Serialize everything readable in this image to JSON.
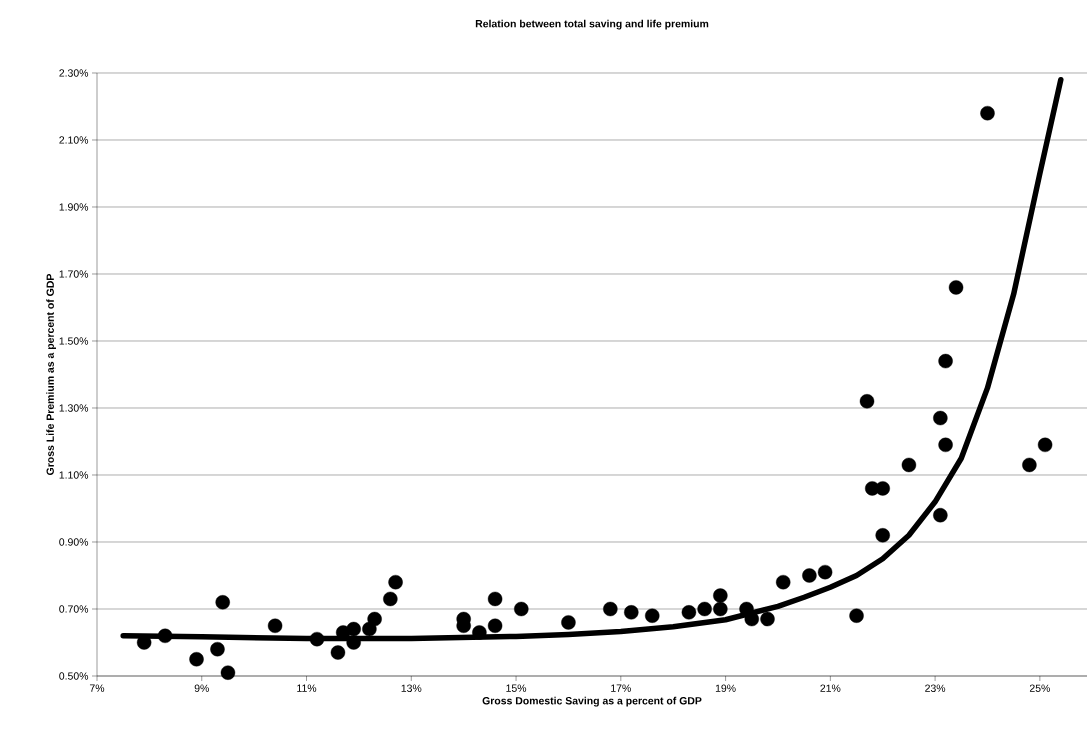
{
  "chart_data": {
    "type": "scatter",
    "title": "Relation between total saving and life premium",
    "xlabel": "Gross Domestic Saving as a percent of GDP",
    "ylabel": "Gross Life Premium as a percent of GDP",
    "xlim": [
      7,
      25.9
    ],
    "ylim": [
      0.5,
      2.3
    ],
    "xticks": [
      {
        "value": 7,
        "label": "7%"
      },
      {
        "value": 9,
        "label": "9%"
      },
      {
        "value": 11,
        "label": "11%"
      },
      {
        "value": 13,
        "label": "13%"
      },
      {
        "value": 15,
        "label": "15%"
      },
      {
        "value": 17,
        "label": "17%"
      },
      {
        "value": 19,
        "label": "19%"
      },
      {
        "value": 21,
        "label": "21%"
      },
      {
        "value": 23,
        "label": "23%"
      },
      {
        "value": 25,
        "label": "25%"
      }
    ],
    "yticks": [
      {
        "value": 0.5,
        "label": "0.50%"
      },
      {
        "value": 0.7,
        "label": "0.70%"
      },
      {
        "value": 0.9,
        "label": "0.90%"
      },
      {
        "value": 1.1,
        "label": "1.10%"
      },
      {
        "value": 1.3,
        "label": "1.30%"
      },
      {
        "value": 1.5,
        "label": "1.50%"
      },
      {
        "value": 1.7,
        "label": "1.70%"
      },
      {
        "value": 1.9,
        "label": "1.90%"
      },
      {
        "value": 2.1,
        "label": "2.10%"
      },
      {
        "value": 2.3,
        "label": "2.30%"
      }
    ],
    "grid": "y",
    "legend": false,
    "marker": "circle",
    "series": [
      {
        "color": "#000000",
        "x": [
          7.9,
          8.3,
          8.9,
          9.3,
          9.4,
          9.5,
          10.4,
          11.2,
          11.6,
          11.7,
          11.9,
          11.9,
          12.2,
          12.3,
          12.6,
          12.7,
          14.0,
          14.0,
          14.3,
          14.6,
          14.6,
          15.1,
          16.0,
          16.8,
          17.2,
          17.6,
          18.3,
          18.6,
          18.9,
          18.9,
          19.4,
          19.5,
          19.8,
          20.1,
          20.6,
          20.9,
          21.5,
          21.7,
          21.8,
          22.0,
          22.0,
          22.5,
          23.1,
          23.1,
          23.2,
          23.2,
          23.4,
          24.0,
          24.8,
          25.1
        ],
        "values": [
          0.6,
          0.62,
          0.55,
          0.58,
          0.72,
          0.51,
          0.65,
          0.61,
          0.57,
          0.63,
          0.64,
          0.6,
          0.64,
          0.67,
          0.73,
          0.78,
          0.67,
          0.65,
          0.63,
          0.73,
          0.65,
          0.7,
          0.66,
          0.7,
          0.69,
          0.68,
          0.69,
          0.7,
          0.74,
          0.7,
          0.7,
          0.67,
          0.67,
          0.78,
          0.8,
          0.81,
          0.68,
          1.32,
          1.06,
          1.06,
          0.92,
          1.13,
          1.27,
          0.98,
          1.44,
          1.19,
          1.66,
          2.18,
          1.13,
          1.19
        ]
      },
      {
        "type": "line",
        "color": "#000000",
        "marker": "none",
        "x": [
          7.5,
          9,
          11,
          13,
          15,
          16,
          17,
          18,
          19,
          20,
          20.5,
          21,
          21.5,
          22,
          22.5,
          23,
          23.5,
          24,
          24.5,
          25,
          25.4
        ],
        "values": [
          0.62,
          0.617,
          0.612,
          0.612,
          0.618,
          0.624,
          0.633,
          0.647,
          0.668,
          0.708,
          0.735,
          0.765,
          0.8,
          0.85,
          0.92,
          1.02,
          1.15,
          1.36,
          1.64,
          2.0,
          2.28
        ]
      }
    ]
  }
}
